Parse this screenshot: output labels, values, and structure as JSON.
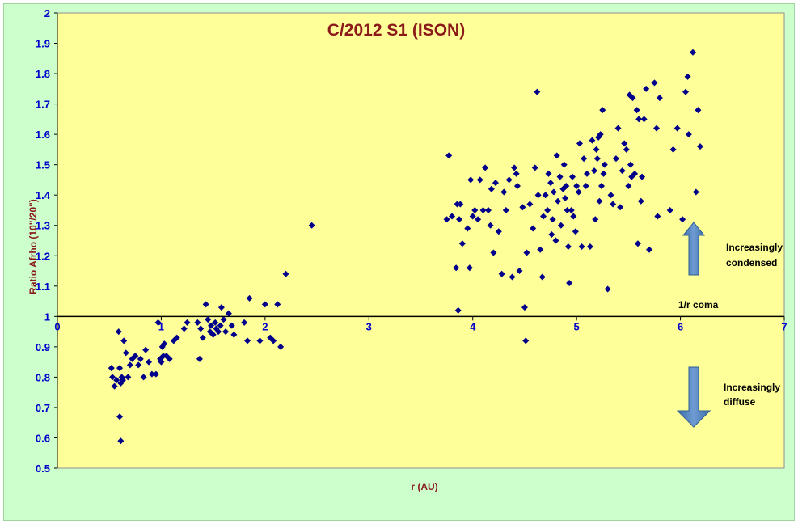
{
  "chart_data": {
    "type": "scatter",
    "title": "C/2012 S1 (ISON)",
    "xlabel": "r (AU)",
    "ylabel": "Ratio Afrho (10\"/20\")",
    "xlim": [
      0,
      7
    ],
    "ylim": [
      0.5,
      2
    ],
    "x_ticks": [
      "0",
      "1",
      "2",
      "3",
      "4",
      "5",
      "6",
      "7"
    ],
    "y_ticks": [
      "0.5",
      "0.6",
      "0.7",
      "0.8",
      "0.9",
      "1",
      "1.1",
      "1.2",
      "1.3",
      "1.4",
      "1.5",
      "1.6",
      "1.7",
      "1.8",
      "1.9",
      "2"
    ],
    "reference_line_y": 1,
    "grid": false,
    "colors": {
      "plot_background": "#ffff99",
      "outer_background": "#ccffcc",
      "marker": "#00008b",
      "arrow": "#4f81bd",
      "title": "#8b1a1a",
      "ticks": "#0000cc"
    },
    "annotations": {
      "coma_line": "1/r coma",
      "up_arrow_line1": "Increasingly",
      "up_arrow_line2": "condensed",
      "down_arrow_line1": "Increasingly",
      "down_arrow_line2": "diffuse"
    },
    "points": [
      [
        0.52,
        0.83
      ],
      [
        0.53,
        0.8
      ],
      [
        0.55,
        0.77
      ],
      [
        0.57,
        0.79
      ],
      [
        0.59,
        0.95
      ],
      [
        0.6,
        0.83
      ],
      [
        0.61,
        0.78
      ],
      [
        0.62,
        0.8
      ],
      [
        0.63,
        0.79
      ],
      [
        0.64,
        0.92
      ],
      [
        0.6,
        0.67
      ],
      [
        0.61,
        0.59
      ],
      [
        0.66,
        0.88
      ],
      [
        0.68,
        0.8
      ],
      [
        0.7,
        0.84
      ],
      [
        0.72,
        0.86
      ],
      [
        0.75,
        0.87
      ],
      [
        0.78,
        0.84
      ],
      [
        0.8,
        0.86
      ],
      [
        0.83,
        0.8
      ],
      [
        0.85,
        0.89
      ],
      [
        0.88,
        0.85
      ],
      [
        0.91,
        0.81
      ],
      [
        0.95,
        0.81
      ],
      [
        0.97,
        0.98
      ],
      [
        0.99,
        0.86
      ],
      [
        1.0,
        0.85
      ],
      [
        1.01,
        0.9
      ],
      [
        1.02,
        0.87
      ],
      [
        1.03,
        0.91
      ],
      [
        1.05,
        0.87
      ],
      [
        1.08,
        0.86
      ],
      [
        1.12,
        0.92
      ],
      [
        1.15,
        0.93
      ],
      [
        1.22,
        0.96
      ],
      [
        1.25,
        0.98
      ],
      [
        1.35,
        0.98
      ],
      [
        1.37,
        0.86
      ],
      [
        1.38,
        0.96
      ],
      [
        1.4,
        0.93
      ],
      [
        1.43,
        1.04
      ],
      [
        1.45,
        0.99
      ],
      [
        1.47,
        0.95
      ],
      [
        1.48,
        0.97
      ],
      [
        1.5,
        0.94
      ],
      [
        1.52,
        0.98
      ],
      [
        1.53,
        0.96
      ],
      [
        1.55,
        0.95
      ],
      [
        1.57,
        0.97
      ],
      [
        1.58,
        1.03
      ],
      [
        1.6,
        0.99
      ],
      [
        1.62,
        0.95
      ],
      [
        1.65,
        1.01
      ],
      [
        1.68,
        0.97
      ],
      [
        1.7,
        0.94
      ],
      [
        1.8,
        0.98
      ],
      [
        1.83,
        0.92
      ],
      [
        1.85,
        1.06
      ],
      [
        1.95,
        0.92
      ],
      [
        2.0,
        1.04
      ],
      [
        2.05,
        0.93
      ],
      [
        2.08,
        0.92
      ],
      [
        2.12,
        1.04
      ],
      [
        2.15,
        0.9
      ],
      [
        2.2,
        1.14
      ],
      [
        2.45,
        1.3
      ],
      [
        3.75,
        1.32
      ],
      [
        3.77,
        1.53
      ],
      [
        3.8,
        1.33
      ],
      [
        3.84,
        1.16
      ],
      [
        3.85,
        1.37
      ],
      [
        3.86,
        1.02
      ],
      [
        3.87,
        1.32
      ],
      [
        3.88,
        1.37
      ],
      [
        3.9,
        1.24
      ],
      [
        3.95,
        1.29
      ],
      [
        3.97,
        1.16
      ],
      [
        3.98,
        1.45
      ],
      [
        4.0,
        1.33
      ],
      [
        4.02,
        1.35
      ],
      [
        4.05,
        1.32
      ],
      [
        4.07,
        1.45
      ],
      [
        4.1,
        1.35
      ],
      [
        4.12,
        1.49
      ],
      [
        4.15,
        1.35
      ],
      [
        4.17,
        1.3
      ],
      [
        4.18,
        1.42
      ],
      [
        4.2,
        1.21
      ],
      [
        4.22,
        1.44
      ],
      [
        4.25,
        1.28
      ],
      [
        4.28,
        1.14
      ],
      [
        4.3,
        1.41
      ],
      [
        4.32,
        1.35
      ],
      [
        4.35,
        1.45
      ],
      [
        4.38,
        1.13
      ],
      [
        4.4,
        1.49
      ],
      [
        4.42,
        1.47
      ],
      [
        4.43,
        1.43
      ],
      [
        4.45,
        1.15
      ],
      [
        4.48,
        1.36
      ],
      [
        4.5,
        1.03
      ],
      [
        4.51,
        0.92
      ],
      [
        4.52,
        1.21
      ],
      [
        4.55,
        1.37
      ],
      [
        4.58,
        1.29
      ],
      [
        4.6,
        1.49
      ],
      [
        4.62,
        1.74
      ],
      [
        4.63,
        1.4
      ],
      [
        4.65,
        1.22
      ],
      [
        4.67,
        1.13
      ],
      [
        4.68,
        1.33
      ],
      [
        4.7,
        1.4
      ],
      [
        4.72,
        1.35
      ],
      [
        4.73,
        1.47
      ],
      [
        4.75,
        1.44
      ],
      [
        4.76,
        1.27
      ],
      [
        4.77,
        1.32
      ],
      [
        4.78,
        1.41
      ],
      [
        4.8,
        1.25
      ],
      [
        4.81,
        1.53
      ],
      [
        4.82,
        1.38
      ],
      [
        4.84,
        1.46
      ],
      [
        4.85,
        1.3
      ],
      [
        4.87,
        1.42
      ],
      [
        4.88,
        1.5
      ],
      [
        4.89,
        1.39
      ],
      [
        4.9,
        1.43
      ],
      [
        4.91,
        1.35
      ],
      [
        4.92,
        1.23
      ],
      [
        4.93,
        1.11
      ],
      [
        4.95,
        1.35
      ],
      [
        4.96,
        1.46
      ],
      [
        4.97,
        1.33
      ],
      [
        4.99,
        1.28
      ],
      [
        5.0,
        1.43
      ],
      [
        5.02,
        1.41
      ],
      [
        5.03,
        1.57
      ],
      [
        5.05,
        1.23
      ],
      [
        5.07,
        1.52
      ],
      [
        5.09,
        1.43
      ],
      [
        5.1,
        1.47
      ],
      [
        5.13,
        1.23
      ],
      [
        5.15,
        1.58
      ],
      [
        5.17,
        1.48
      ],
      [
        5.18,
        1.32
      ],
      [
        5.19,
        1.55
      ],
      [
        5.2,
        1.52
      ],
      [
        5.21,
        1.59
      ],
      [
        5.22,
        1.38
      ],
      [
        5.23,
        1.6
      ],
      [
        5.24,
        1.43
      ],
      [
        5.25,
        1.68
      ],
      [
        5.26,
        1.47
      ],
      [
        5.27,
        1.5
      ],
      [
        5.3,
        1.09
      ],
      [
        5.33,
        1.4
      ],
      [
        5.35,
        1.37
      ],
      [
        5.38,
        1.52
      ],
      [
        5.4,
        1.62
      ],
      [
        5.42,
        1.36
      ],
      [
        5.44,
        1.48
      ],
      [
        5.46,
        1.57
      ],
      [
        5.48,
        1.55
      ],
      [
        5.5,
        1.43
      ],
      [
        5.51,
        1.73
      ],
      [
        5.52,
        1.5
      ],
      [
        5.53,
        1.46
      ],
      [
        5.54,
        1.72
      ],
      [
        5.56,
        1.47
      ],
      [
        5.58,
        1.68
      ],
      [
        5.59,
        1.24
      ],
      [
        5.6,
        1.65
      ],
      [
        5.62,
        1.38
      ],
      [
        5.63,
        1.46
      ],
      [
        5.65,
        1.65
      ],
      [
        5.67,
        1.75
      ],
      [
        5.7,
        1.22
      ],
      [
        5.75,
        1.77
      ],
      [
        5.77,
        1.62
      ],
      [
        5.78,
        1.33
      ],
      [
        5.8,
        1.72
      ],
      [
        5.9,
        1.35
      ],
      [
        5.93,
        1.55
      ],
      [
        5.97,
        1.62
      ],
      [
        6.02,
        1.32
      ],
      [
        6.05,
        1.74
      ],
      [
        6.07,
        1.79
      ],
      [
        6.08,
        1.6
      ],
      [
        6.12,
        1.87
      ],
      [
        6.15,
        1.41
      ],
      [
        6.17,
        1.68
      ],
      [
        6.19,
        1.56
      ]
    ]
  }
}
